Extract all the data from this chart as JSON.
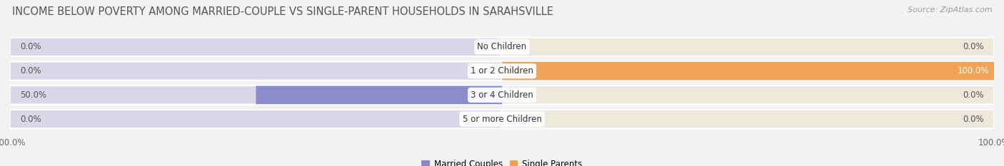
{
  "title": "INCOME BELOW POVERTY AMONG MARRIED-COUPLE VS SINGLE-PARENT HOUSEHOLDS IN SARAHSVILLE",
  "source": "Source: ZipAtlas.com",
  "categories": [
    "No Children",
    "1 or 2 Children",
    "3 or 4 Children",
    "5 or more Children"
  ],
  "married_values": [
    0.0,
    0.0,
    50.0,
    0.0
  ],
  "single_values": [
    0.0,
    100.0,
    0.0,
    0.0
  ],
  "married_color": "#8888cc",
  "single_color": "#f0a050",
  "married_bg_color": "#d8d8e8",
  "single_bg_color": "#ede8dc",
  "married_label": "Married Couples",
  "single_label": "Single Parents",
  "background_color": "#f2f2f2",
  "row_bg": "#e8e8ec",
  "xlim": 100.0,
  "title_fontsize": 10.5,
  "source_fontsize": 8,
  "value_fontsize": 8.5,
  "tick_fontsize": 8.5,
  "category_fontsize": 8.5,
  "legend_fontsize": 8.5
}
